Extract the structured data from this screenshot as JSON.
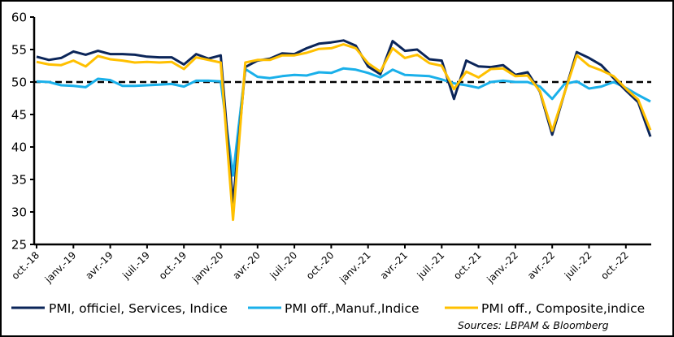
{
  "chart_data": {
    "type": "line",
    "title": "",
    "xlabel": "",
    "ylabel": "",
    "ylim": [
      25,
      60
    ],
    "yticks": [
      "25",
      "30",
      "35",
      "40",
      "45",
      "50",
      "55",
      "60"
    ],
    "grid": false,
    "reference_line": {
      "value": 50,
      "style": "dashed",
      "color": "#000000"
    },
    "x_tick_labels": [
      "oct.-18",
      "janv.-19",
      "avr.-19",
      "juil.-19",
      "oct.-19",
      "janv.-20",
      "avr.-20",
      "juil.-20",
      "oct.-20",
      "janv.-21",
      "avr.-21",
      "juil.-21",
      "oct.-21",
      "janv.-22",
      "avr.-22",
      "juil.-22",
      "oct.-22"
    ],
    "x": [
      "oct.-18",
      "nov.-18",
      "déc.-18",
      "janv.-19",
      "févr.-19",
      "mars-19",
      "avr.-19",
      "mai-19",
      "juin-19",
      "juil.-19",
      "août-19",
      "sept.-19",
      "oct.-19",
      "nov.-19",
      "déc.-19",
      "janv.-20",
      "févr.-20",
      "mars-20",
      "avr.-20",
      "mai-20",
      "juin-20",
      "juil.-20",
      "août-20",
      "sept.-20",
      "oct.-20",
      "nov.-20",
      "déc.-20",
      "janv.-21",
      "févr.-21",
      "mars-21",
      "avr.-21",
      "mai-21",
      "juin-21",
      "juil.-21",
      "août-21",
      "sept.-21",
      "oct.-21",
      "nov.-21",
      "déc.-21",
      "janv.-22",
      "févr.-22",
      "mars-22",
      "avr.-22",
      "mai-22",
      "juin-22",
      "juil.-22",
      "août-22",
      "sept.-22",
      "oct.-22",
      "nov.-22",
      "déc.-22"
    ],
    "series": [
      {
        "name": "PMI, officiel, Services, Indice",
        "color": "#0b2559",
        "values": [
          53.9,
          53.4,
          53.7,
          54.7,
          54.2,
          54.8,
          54.3,
          54.3,
          54.2,
          53.9,
          53.8,
          53.8,
          52.7,
          54.3,
          53.6,
          54.1,
          31.2,
          52.3,
          53.3,
          53.6,
          54.4,
          54.3,
          55.2,
          55.9,
          56.1,
          56.4,
          55.6,
          52.4,
          51.2,
          56.3,
          54.8,
          55.0,
          53.5,
          53.3,
          47.4,
          53.3,
          52.4,
          52.3,
          52.6,
          51.1,
          51.5,
          48.5,
          41.9,
          48.3,
          54.6,
          53.7,
          52.6,
          50.6,
          48.7,
          46.9,
          41.6
        ]
      },
      {
        "name": "PMI off.,Manuf.,Indice",
        "color": "#1ab0ea",
        "values": [
          50.1,
          50.0,
          49.5,
          49.4,
          49.2,
          50.5,
          50.3,
          49.4,
          49.4,
          49.5,
          49.6,
          49.7,
          49.3,
          50.2,
          50.2,
          50.1,
          35.6,
          52.0,
          50.8,
          50.6,
          50.9,
          51.1,
          51.0,
          51.5,
          51.4,
          52.1,
          51.9,
          51.4,
          50.7,
          51.9,
          51.1,
          51.0,
          50.9,
          50.4,
          49.8,
          49.5,
          49.1,
          50.0,
          50.2,
          50.0,
          50.0,
          49.3,
          47.4,
          49.7,
          50.1,
          49.0,
          49.3,
          50.0,
          49.1,
          48.0,
          47.0
        ]
      },
      {
        "name": "PMI off., Composite,indice",
        "color": "#ffc000",
        "values": [
          53.1,
          52.7,
          52.6,
          53.3,
          52.4,
          54.0,
          53.5,
          53.3,
          53.0,
          53.1,
          53.0,
          53.1,
          52.0,
          53.8,
          53.4,
          53.0,
          28.8,
          53.0,
          53.4,
          53.4,
          54.1,
          54.1,
          54.5,
          55.1,
          55.2,
          55.8,
          55.2,
          52.9,
          51.6,
          55.2,
          53.7,
          54.2,
          52.9,
          52.5,
          48.9,
          51.6,
          50.7,
          52.0,
          52.1,
          50.9,
          51.0,
          48.6,
          42.5,
          48.3,
          54.1,
          52.5,
          51.8,
          50.9,
          49.0,
          47.3,
          42.6
        ]
      }
    ],
    "legend_placement": "bottom",
    "source": "Sources: LBPAM & Bloomberg"
  }
}
